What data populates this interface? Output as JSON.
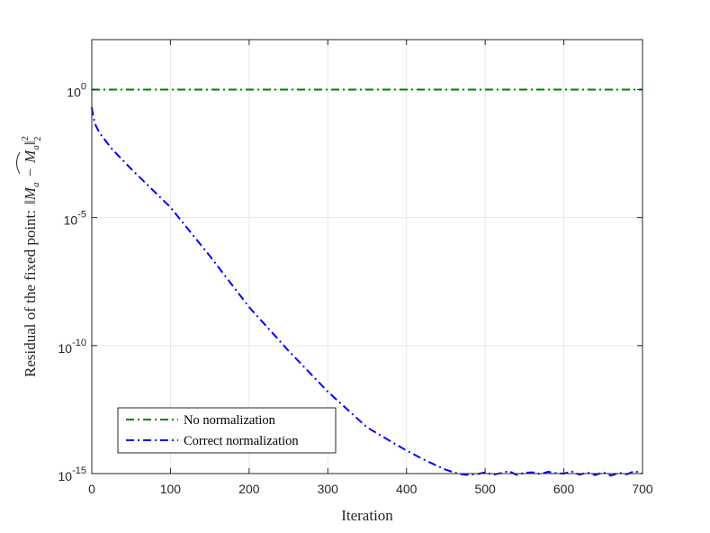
{
  "chart_data": {
    "type": "line",
    "xlabel": "Iteration",
    "ylabel": "Residual of the fixed point: ‖M_a − ̂M_a‖²₂",
    "ylabel_parts": {
      "prefix": "Residual of the fixed point:",
      "norm_open": "‖",
      "m1": "M",
      "sub1": "a",
      "minus": "−",
      "m2": "M",
      "sub2": "a",
      "hat": "⌢",
      "norm_close": "‖",
      "sup": "2",
      "sub": "2"
    },
    "xlim": [
      0,
      700
    ],
    "ylim_log10": [
      -15,
      1.95
    ],
    "yscale": "log",
    "grid": true,
    "legend_position": "lower-left",
    "x_ticks": [
      0,
      100,
      200,
      300,
      400,
      500,
      600,
      700
    ],
    "x_tick_labels": [
      "0",
      "100",
      "200",
      "300",
      "400",
      "500",
      "600",
      "700"
    ],
    "y_ticks_log10": [
      0,
      -5,
      -10,
      -15
    ],
    "y_tick_labels": [
      {
        "base": "10",
        "exp": "0"
      },
      {
        "base": "10",
        "exp": "-5"
      },
      {
        "base": "10",
        "exp": "-10"
      },
      {
        "base": "10",
        "exp": "-15"
      }
    ],
    "series": [
      {
        "name": "No normalization",
        "color": "#008000",
        "style": "dash-dot",
        "x": [
          0,
          700
        ],
        "y_log10": [
          0,
          0
        ]
      },
      {
        "name": "Correct normalization",
        "color": "#0000ff",
        "style": "dash-dot",
        "x": [
          0,
          2,
          5,
          10,
          25,
          50,
          100,
          150,
          200,
          250,
          300,
          350,
          400,
          425,
          450,
          465,
          475,
          490,
          500,
          510,
          520,
          530,
          540,
          550,
          560,
          570,
          580,
          590,
          600,
          610,
          620,
          630,
          640,
          650,
          660,
          670,
          680,
          690,
          700
        ],
        "y_log10": [
          -0.7,
          -1.1,
          -1.4,
          -1.7,
          -2.3,
          -3.1,
          -4.6,
          -6.5,
          -8.5,
          -10.2,
          -11.8,
          -13.2,
          -14.1,
          -14.5,
          -14.85,
          -15.0,
          -15.05,
          -15.02,
          -14.95,
          -15.05,
          -14.98,
          -14.9,
          -15.05,
          -14.97,
          -14.95,
          -15.02,
          -14.93,
          -14.98,
          -15.0,
          -14.92,
          -15.04,
          -14.96,
          -15.06,
          -14.95,
          -15.08,
          -14.97,
          -15.03,
          -14.9,
          -15.0
        ]
      }
    ]
  }
}
